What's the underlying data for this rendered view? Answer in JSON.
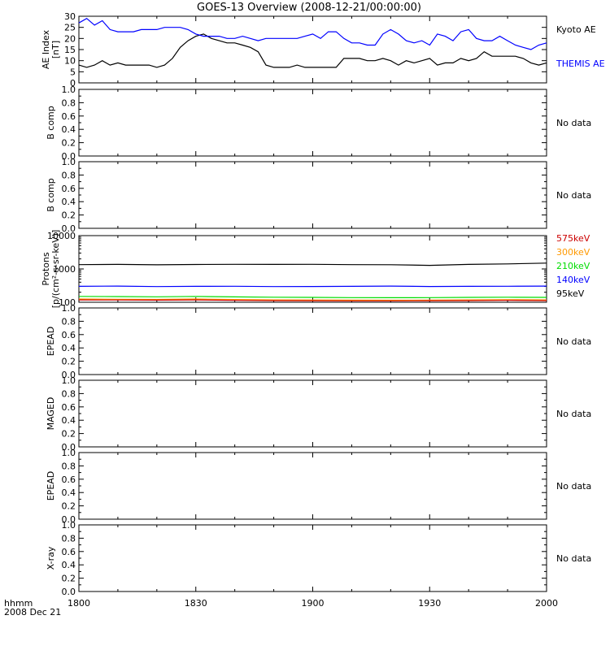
{
  "title": "GOES-13 Overview (2008-12-21/00:00:00)",
  "footer": {
    "line1": "hhmm",
    "line2": "2008 Dec 21"
  },
  "colors": {
    "black": "#000000",
    "blue": "#0000ff",
    "red": "#cc0000",
    "orange": "#ff9900",
    "green": "#00dd00"
  },
  "chart_data": {
    "type": "line",
    "x_axis": {
      "ticks": [
        "1800",
        "1830",
        "1900",
        "1930",
        "2000"
      ],
      "range_minutes": [
        0,
        120
      ]
    },
    "panels": [
      {
        "id": "ae",
        "ylabel": [
          "AE Index",
          "[nT]"
        ],
        "ylim": [
          0,
          30
        ],
        "yticks": [
          "0",
          "5",
          "10",
          "15",
          "20",
          "25",
          "30"
        ],
        "scale": "linear",
        "series": [
          {
            "name": "Kyoto AE",
            "color": "#000000",
            "x": [
              0,
              2,
              4,
              6,
              8,
              10,
              12,
              14,
              16,
              18,
              20,
              22,
              24,
              26,
              28,
              30,
              32,
              34,
              36,
              38,
              40,
              42,
              44,
              46,
              48,
              50,
              52,
              54,
              56,
              58,
              60,
              62,
              64,
              66,
              68,
              70,
              72,
              74,
              76,
              78,
              80,
              82,
              84,
              86,
              88,
              90,
              92,
              94,
              96,
              98,
              100,
              102,
              104,
              106,
              108,
              110,
              112,
              114,
              116,
              118,
              120
            ],
            "y": [
              8,
              7,
              8,
              10,
              8,
              9,
              8,
              8,
              8,
              8,
              7,
              8,
              11,
              16,
              19,
              21,
              22,
              20,
              19,
              18,
              18,
              17,
              16,
              14,
              8,
              7,
              7,
              7,
              8,
              7,
              7,
              7,
              7,
              7,
              11,
              11,
              11,
              10,
              10,
              11,
              10,
              8,
              10,
              9,
              10,
              11,
              8,
              9,
              9,
              11,
              10,
              11,
              14,
              12,
              12,
              12,
              12,
              11,
              9,
              8,
              9
            ]
          },
          {
            "name": "THEMIS AE",
            "color": "#0000ff",
            "x": [
              0,
              2,
              4,
              6,
              8,
              10,
              12,
              14,
              16,
              18,
              20,
              22,
              24,
              26,
              28,
              30,
              32,
              34,
              36,
              38,
              40,
              42,
              44,
              46,
              48,
              50,
              52,
              54,
              56,
              58,
              60,
              62,
              64,
              66,
              68,
              70,
              72,
              74,
              76,
              78,
              80,
              82,
              84,
              86,
              88,
              90,
              92,
              94,
              96,
              98,
              100,
              102,
              104,
              106,
              108,
              110,
              112,
              114,
              116,
              118,
              120
            ],
            "y": [
              27,
              29,
              26,
              28,
              24,
              23,
              23,
              23,
              24,
              24,
              24,
              25,
              25,
              25,
              24,
              22,
              21,
              21,
              21,
              20,
              20,
              21,
              20,
              19,
              20,
              20,
              20,
              20,
              20,
              21,
              22,
              20,
              23,
              23,
              20,
              18,
              18,
              17,
              17,
              22,
              24,
              22,
              19,
              18,
              19,
              17,
              22,
              21,
              19,
              23,
              24,
              20,
              19,
              19,
              21,
              19,
              17,
              16,
              15,
              17,
              18
            ]
          }
        ]
      },
      {
        "id": "protons",
        "ylabel": [
          "Protons",
          "[p/(cm²-s-sr-keV)]"
        ],
        "ylim": [
          100,
          10000
        ],
        "yticks": [
          "100",
          "1000",
          "10000"
        ],
        "scale": "log",
        "series": [
          {
            "name": "95keV",
            "color": "#000000",
            "x": [
              0,
              10,
              20,
              30,
              40,
              50,
              60,
              70,
              80,
              90,
              100,
              110,
              120
            ],
            "y": [
              1350,
              1370,
              1330,
              1360,
              1380,
              1370,
              1380,
              1350,
              1340,
              1280,
              1370,
              1420,
              1500
            ]
          },
          {
            "name": "140keV",
            "color": "#0000ff",
            "x": [
              0,
              10,
              20,
              30,
              40,
              50,
              60,
              70,
              80,
              90,
              100,
              110,
              120
            ],
            "y": [
              300,
              305,
              295,
              300,
              302,
              296,
              298,
              300,
              305,
              298,
              300,
              302,
              305
            ]
          },
          {
            "name": "210keV",
            "color": "#00dd00",
            "x": [
              0,
              10,
              20,
              30,
              40,
              50,
              60,
              70,
              80,
              90,
              100,
              110,
              120
            ],
            "y": [
              150,
              148,
              146,
              150,
              145,
              142,
              140,
              138,
              137,
              138,
              140,
              142,
              140
            ]
          },
          {
            "name": "300keV",
            "color": "#ff9900",
            "x": [
              0,
              10,
              20,
              30,
              40,
              50,
              60,
              70,
              80,
              90,
              100,
              110,
              120
            ],
            "y": [
              125,
              123,
              122,
              125,
              121,
              118,
              117,
              116,
              115,
              116,
              118,
              120,
              118
            ]
          },
          {
            "name": "575keV",
            "color": "#cc0000",
            "x": [
              0,
              10,
              20,
              30,
              40,
              50,
              60,
              70,
              80,
              90,
              100,
              110,
              120
            ],
            "y": [
              118,
              117,
              116,
              118,
              114,
              112,
              111,
              110,
              110,
              111,
              112,
              114,
              112
            ]
          }
        ]
      },
      {
        "id": "bcomp1",
        "ylabel": [
          "B comp"
        ],
        "ylim": [
          0,
          1
        ],
        "yticks": [
          "0.0",
          "0.2",
          "0.4",
          "0.6",
          "0.8",
          "1.0"
        ],
        "status": "No data"
      },
      {
        "id": "bcomp2",
        "ylabel": [
          "B comp"
        ],
        "ylim": [
          0,
          1
        ],
        "yticks": [
          "0.0",
          "0.2",
          "0.4",
          "0.6",
          "0.8",
          "1.0"
        ],
        "status": "No data"
      },
      {
        "id": "epead1",
        "ylabel": [
          "EPEAD"
        ],
        "ylim": [
          0,
          1
        ],
        "yticks": [
          "0.0",
          "0.2",
          "0.4",
          "0.6",
          "0.8",
          "1.0"
        ],
        "status": "No data"
      },
      {
        "id": "maged",
        "ylabel": [
          "MAGED"
        ],
        "ylim": [
          0,
          1
        ],
        "yticks": [
          "0.0",
          "0.2",
          "0.4",
          "0.6",
          "0.8",
          "1.0"
        ],
        "status": "No data"
      },
      {
        "id": "epead2",
        "ylabel": [
          "EPEAD"
        ],
        "ylim": [
          0,
          1
        ],
        "yticks": [
          "0.0",
          "0.2",
          "0.4",
          "0.6",
          "0.8",
          "1.0"
        ],
        "status": "No data"
      },
      {
        "id": "xray",
        "ylabel": [
          "X-ray"
        ],
        "ylim": [
          0,
          1
        ],
        "yticks": [
          "0.0",
          "0.2",
          "0.4",
          "0.6",
          "0.8",
          "1.0"
        ],
        "status": "No data"
      }
    ]
  }
}
